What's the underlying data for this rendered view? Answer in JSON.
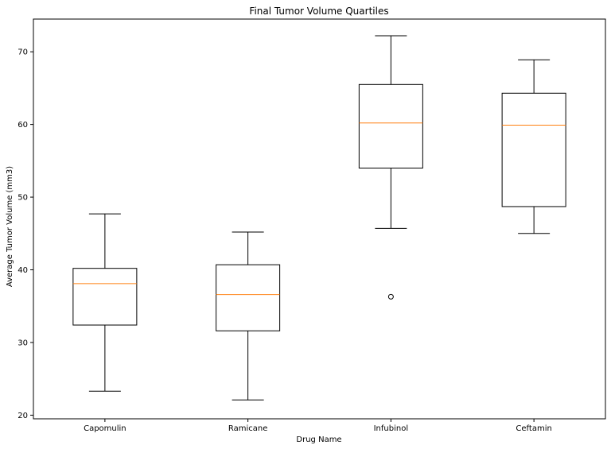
{
  "chart_data": {
    "type": "boxplot",
    "title": "Final Tumor Volume Quartiles",
    "xlabel": "Drug Name",
    "ylabel": "Average Tumor Volume (mm3)",
    "ylim": [
      19.5,
      74.5
    ],
    "yticks": [
      20,
      30,
      40,
      50,
      60,
      70
    ],
    "grid": false,
    "colors": {
      "box": "#000000",
      "median": "#ff7f0e",
      "whisker": "#000000",
      "outlier": "#000000"
    },
    "categories": [
      "Capomulin",
      "Ramicane",
      "Infubinol",
      "Ceftamin"
    ],
    "boxes": [
      {
        "name": "Capomulin",
        "whislo": 23.3,
        "q1": 32.4,
        "median": 38.1,
        "q3": 40.2,
        "whishi": 47.7,
        "fliers": []
      },
      {
        "name": "Ramicane",
        "whislo": 22.1,
        "q1": 31.6,
        "median": 36.6,
        "q3": 40.7,
        "whishi": 45.2,
        "fliers": []
      },
      {
        "name": "Infubinol",
        "whislo": 45.7,
        "q1": 54.0,
        "median": 60.2,
        "q3": 65.5,
        "whishi": 72.2,
        "fliers": [
          36.3
        ]
      },
      {
        "name": "Ceftamin",
        "whislo": 45.0,
        "q1": 48.7,
        "median": 59.9,
        "q3": 64.3,
        "whishi": 68.9,
        "fliers": []
      }
    ]
  }
}
